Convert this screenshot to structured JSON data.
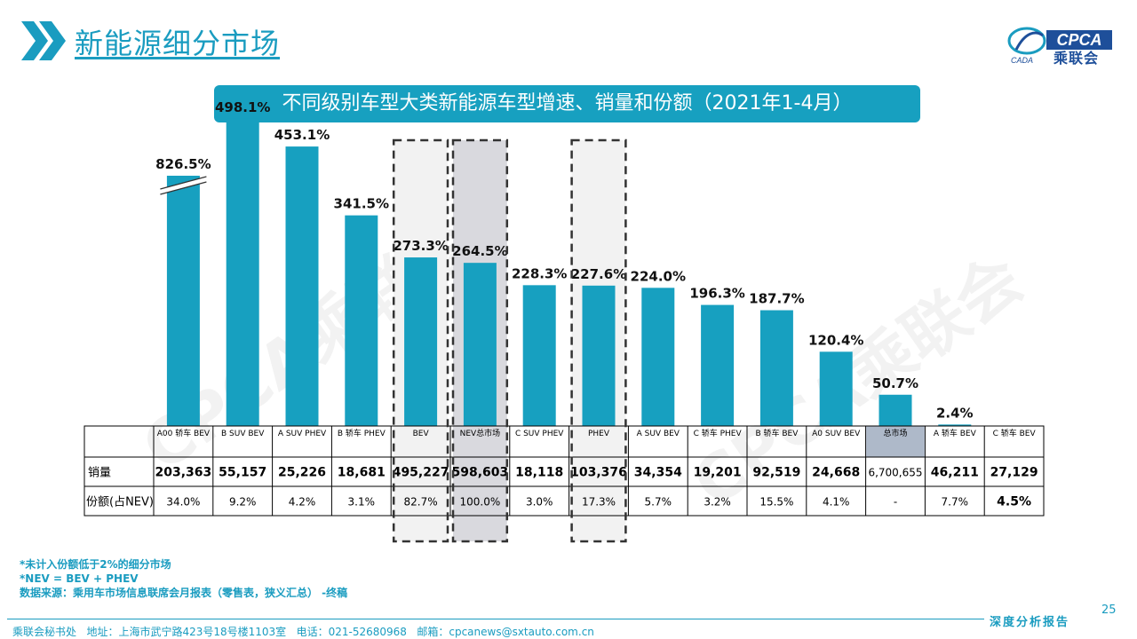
{
  "header": {
    "title": "新能源细分市场",
    "logo_text": "CPCA",
    "logo_sub": "乘联会",
    "logo_small": "CADA"
  },
  "watermark": "CPCA乘联会",
  "chart_data": {
    "type": "bar",
    "title": "不同级别车型大类新能源车型增速、销量和份额（2021年1-4月）",
    "categories": [
      "A00 轿车 BEV",
      "B SUV BEV",
      "A SUV PHEV",
      "B 轿车 PHEV",
      "BEV",
      "NEV总市场",
      "C SUV PHEV",
      "PHEV",
      "A SUV BEV",
      "C 轿车 PHEV",
      "B 轿车 BEV",
      "A0 SUV BEV",
      "总市场",
      "A 轿车 BEV",
      "C 轿车 BEV"
    ],
    "values": [
      826.5,
      498.1,
      453.1,
      341.5,
      273.3,
      264.5,
      228.3,
      227.6,
      224.0,
      196.3,
      187.7,
      120.4,
      50.7,
      2.4,
      0
    ],
    "value_labels": [
      "826.5%",
      "498.1%",
      "453.1%",
      "341.5%",
      "273.3%",
      "264.5%",
      "228.3%",
      "227.6%",
      "224.0%",
      "196.3%",
      "187.7%",
      "120.4%",
      "50.7%",
      "2.4%",
      ""
    ],
    "broken_axis_first_bar": true,
    "highlighted": [
      "BEV",
      "NEV总市场",
      "PHEV"
    ],
    "bar_color": "#17a0c0",
    "highlight_fill": "#f2f2f2",
    "highlight_fill_strong": "#d9d9de",
    "table": {
      "row_labels": [
        "销量",
        "份额(占NEV)"
      ],
      "sales": [
        "203,363",
        "55,157",
        "25,226",
        "18,681",
        "495,227",
        "598,603",
        "18,118",
        "103,376",
        "34,354",
        "19,201",
        "92,519",
        "24,668",
        "6,700,655",
        "46,211",
        "27,129"
      ],
      "share": [
        "34.0%",
        "9.2%",
        "4.2%",
        "3.1%",
        "82.7%",
        "100.0%",
        "3.0%",
        "17.3%",
        "5.7%",
        "3.2%",
        "15.5%",
        "4.1%",
        "-",
        "7.7%",
        "4.5%"
      ]
    }
  },
  "notes": [
    "*未计入份额低于2%的细分市场",
    "*NEV = BEV + PHEV",
    "数据来源：乘用车市场信息联席会月报表（零售表，狭义汇总） -终稿"
  ],
  "page_number": "25",
  "footer": "乘联会秘书处   地址：上海市武宁路423号18号楼1103室   电话：021-52680968   邮箱：cpcanews@sxtauto.com.cn",
  "tagline": "深度分析报告"
}
